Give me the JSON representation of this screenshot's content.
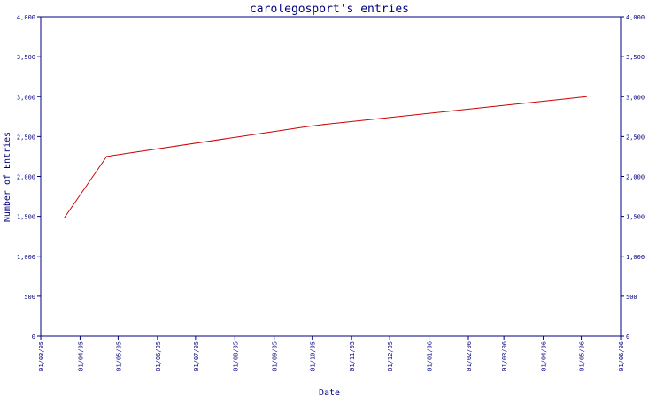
{
  "chart_data": {
    "type": "line",
    "title": "carolegosport's entries",
    "xlabel": "Date",
    "ylabel": "Number of Entries",
    "ylim": [
      0,
      4000
    ],
    "y_ticks": [
      "0",
      "500",
      "1,000",
      "1,500",
      "2,000",
      "2,500",
      "3,000",
      "3,500",
      "4,000"
    ],
    "y_tick_values": [
      0,
      500,
      1000,
      1500,
      2000,
      2500,
      3000,
      3500,
      4000
    ],
    "x_ticks": [
      "01/03/05",
      "01/04/05",
      "01/05/05",
      "01/06/05",
      "01/07/05",
      "01/08/05",
      "01/09/05",
      "01/10/05",
      "01/11/05",
      "01/12/05",
      "01/01/06",
      "01/02/06",
      "01/03/06",
      "01/04/06",
      "01/05/06",
      "01/06/06"
    ],
    "xlim": [
      "2005-03-01",
      "2006-06-01"
    ],
    "grid": false,
    "legend": "none",
    "series": [
      {
        "color": "#cc0000",
        "x": [
          "2005-03-20",
          "2005-04-22",
          "2005-09-25",
          "2005-10-10",
          "2006-05-05"
        ],
        "y": [
          1490,
          2250,
          2620,
          2650,
          3000
        ]
      }
    ]
  }
}
